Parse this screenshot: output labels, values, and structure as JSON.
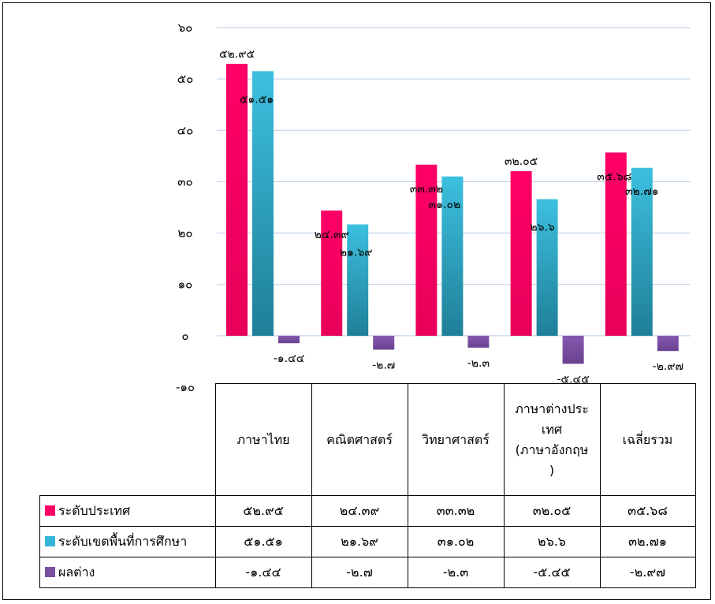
{
  "chart_data": {
    "type": "bar",
    "categories": [
      "ภาษาไทย",
      "คณิตศาสตร์",
      "วิทยาศาสตร์",
      "ภาษาต่างประเทศ (ภาษาอังกฤษ)",
      "เฉลี่ยรวม"
    ],
    "category_display": [
      "ภาษาไทย",
      "คณิตศาสตร์",
      "วิทยาศาสตร์",
      "ภาษาต่างประ\nเทศ\n(ภาษาอังกฤษ\n)",
      "เฉลี่ยรวม"
    ],
    "series": [
      {
        "name": "ระดับประเทศ",
        "color": "#FF0066",
        "values": [
          52.95,
          24.39,
          33.32,
          32.05,
          35.68
        ],
        "labels": [
          "๕๒.๙๕",
          "๒๔.๓๙",
          "๓๓.๓๒",
          "๓๒.๐๕",
          "๓๕.๖๘"
        ]
      },
      {
        "name": "ระดับเขตพื้นที่การศึกษา",
        "color": "#33B5D6",
        "values": [
          51.51,
          21.69,
          31.02,
          26.6,
          32.71
        ],
        "labels": [
          "๕๑.๕๑",
          "๒๑.๖๙",
          "๓๑.๐๒",
          "๒๖.๖",
          "๓๒.๗๑"
        ]
      },
      {
        "name": "ผลต่าง",
        "color": "#7B4FA0",
        "values": [
          -1.44,
          -2.7,
          -2.3,
          -5.45,
          -2.97
        ],
        "labels": [
          "-๑.๔๔",
          "-๒.๗",
          "-๒.๓",
          "-๕.๔๕",
          "-๒.๙๗"
        ]
      }
    ],
    "y_ticks": [
      60,
      50,
      40,
      30,
      20,
      10,
      0,
      -10
    ],
    "y_tick_labels": [
      "๖๐",
      "๕๐",
      "๔๐",
      "๓๐",
      "๒๐",
      "๑๐",
      "๐",
      "-๑๐"
    ],
    "ylim": [
      -10,
      60
    ],
    "grid": true,
    "legend": "data-table"
  }
}
